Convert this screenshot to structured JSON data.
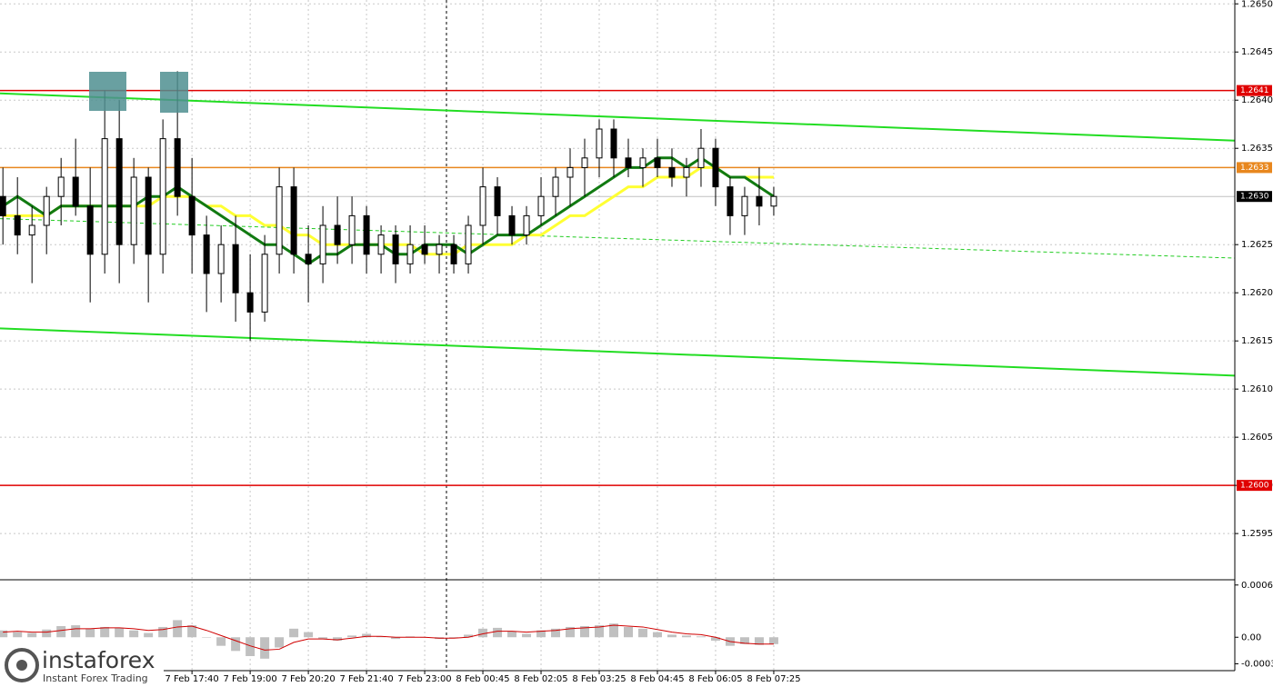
{
  "chart_data": {
    "type": "candlestick",
    "xlim": [
      -0.2,
      84.7
    ],
    "ylim": [
      1.25902,
      1.26504
    ],
    "grid": true,
    "candle_colors": {
      "up": "#ffffff",
      "down": "#000000",
      "edge": "#000000"
    },
    "xticks": [
      {
        "value": 13,
        "label": "7 Feb 17:40"
      },
      {
        "value": 17,
        "label": "7 Feb 19:00"
      },
      {
        "value": 21,
        "label": "7 Feb 20:20"
      },
      {
        "value": 25,
        "label": "7 Feb 21:40"
      },
      {
        "value": 29,
        "label": "7 Feb 23:00"
      },
      {
        "value": 33,
        "label": "8 Feb 00:45"
      },
      {
        "value": 37,
        "label": "8 Feb 02:05"
      },
      {
        "value": 41,
        "label": "8 Feb 03:25"
      },
      {
        "value": 45,
        "label": "8 Feb 04:45"
      },
      {
        "value": 49,
        "label": "8 Feb 06:05"
      },
      {
        "value": 53,
        "label": "8 Feb 07:25"
      }
    ],
    "yticks": [
      {
        "value": 1.265,
        "label": "1.2650"
      },
      {
        "value": 1.2645,
        "label": "1.2645"
      },
      {
        "value": 1.264,
        "label": "1.2640"
      },
      {
        "value": 1.2635,
        "label": "1.2635"
      },
      {
        "value": 1.2625,
        "label": "1.2625"
      },
      {
        "value": 1.262,
        "label": "1.2620"
      },
      {
        "value": 1.2615,
        "label": "1.2615"
      },
      {
        "value": 1.261,
        "label": "1.2610"
      },
      {
        "value": 1.2605,
        "label": "1.2605"
      },
      {
        "value": 1.26,
        "label": "1.2600"
      },
      {
        "value": 1.2595,
        "label": "1.2595"
      }
    ],
    "open": [
      1.263,
      1.2628,
      1.2626,
      1.2627,
      1.263,
      1.2632,
      1.2629,
      1.2624,
      1.2636,
      1.2625,
      1.2632,
      1.2624,
      1.2636,
      1.263,
      1.2626,
      1.2622,
      1.2625,
      1.262,
      1.2618,
      1.2624,
      1.2631,
      1.2624,
      1.2623,
      1.2627,
      1.2625,
      1.2628,
      1.2624,
      1.2626,
      1.2623,
      1.2625,
      1.2624,
      1.2625,
      1.2623,
      1.2627,
      1.2631,
      1.2628,
      1.2626,
      1.2628,
      1.263,
      1.2632,
      1.2633,
      1.2634,
      1.2637,
      1.2634,
      1.2633,
      1.2634,
      1.2633,
      1.2632,
      1.2633,
      1.2635,
      1.2631,
      1.2628,
      1.263,
      1.2629
    ],
    "high": [
      1.2633,
      1.2632,
      1.2629,
      1.2631,
      1.2634,
      1.2636,
      1.2633,
      1.2641,
      1.264,
      1.2634,
      1.2633,
      1.2638,
      1.2643,
      1.2634,
      1.2628,
      1.2627,
      1.2628,
      1.2624,
      1.2626,
      1.2633,
      1.2633,
      1.2627,
      1.2629,
      1.263,
      1.263,
      1.2629,
      1.2627,
      1.2627,
      1.2627,
      1.2627,
      1.2626,
      1.2626,
      1.2628,
      1.2633,
      1.2632,
      1.2629,
      1.2629,
      1.2632,
      1.2633,
      1.2635,
      1.2636,
      1.2638,
      1.2638,
      1.2636,
      1.2635,
      1.2636,
      1.2635,
      1.2634,
      1.2637,
      1.2636,
      1.2632,
      1.2631,
      1.2633,
      1.2631
    ],
    "low": [
      1.2625,
      1.2624,
      1.2621,
      1.2624,
      1.2627,
      1.2628,
      1.2619,
      1.2622,
      1.2621,
      1.2623,
      1.2619,
      1.2622,
      1.2628,
      1.2622,
      1.2618,
      1.2619,
      1.2617,
      1.2615,
      1.2617,
      1.2622,
      1.2622,
      1.2619,
      1.2621,
      1.2623,
      1.2623,
      1.2622,
      1.2622,
      1.2621,
      1.2622,
      1.2623,
      1.2622,
      1.2622,
      1.2622,
      1.2625,
      1.2626,
      1.2625,
      1.2625,
      1.2627,
      1.2628,
      1.2629,
      1.263,
      1.2632,
      1.2632,
      1.2632,
      1.2631,
      1.2632,
      1.2631,
      1.263,
      1.2631,
      1.2629,
      1.2626,
      1.2626,
      1.2627,
      1.2628
    ],
    "close": [
      1.2628,
      1.2626,
      1.2627,
      1.263,
      1.2632,
      1.2629,
      1.2624,
      1.2636,
      1.2625,
      1.2632,
      1.2624,
      1.2636,
      1.263,
      1.2626,
      1.2622,
      1.2625,
      1.262,
      1.2618,
      1.2624,
      1.2631,
      1.2624,
      1.2623,
      1.2627,
      1.2625,
      1.2628,
      1.2624,
      1.2626,
      1.2623,
      1.2625,
      1.2624,
      1.2625,
      1.2623,
      1.2627,
      1.2631,
      1.2628,
      1.2626,
      1.2628,
      1.263,
      1.2632,
      1.2633,
      1.2634,
      1.2637,
      1.2634,
      1.2633,
      1.2634,
      1.2633,
      1.2632,
      1.2633,
      1.2635,
      1.2631,
      1.2628,
      1.263,
      1.2629,
      1.263
    ],
    "lines": [
      {
        "color": "#ffff33",
        "values": [
          1.2628,
          1.2628,
          1.2628,
          1.2628,
          1.2629,
          1.2629,
          1.2629,
          1.2629,
          1.2629,
          1.2629,
          1.2629,
          1.263,
          1.263,
          1.263,
          1.2629,
          1.2629,
          1.2628,
          1.2628,
          1.2627,
          1.2627,
          1.2626,
          1.2626,
          1.2625,
          1.2625,
          1.2625,
          1.2625,
          1.2625,
          1.2625,
          1.2625,
          1.2624,
          1.2624,
          1.2624,
          1.2625,
          1.2625,
          1.2625,
          1.2625,
          1.2626,
          1.2626,
          1.2627,
          1.2628,
          1.2628,
          1.2629,
          1.263,
          1.2631,
          1.2631,
          1.2632,
          1.2632,
          1.2632,
          1.2633,
          1.2633,
          1.2632,
          1.2632,
          1.2632,
          1.2632
        ]
      },
      {
        "color": "#117a11",
        "values": [
          1.2629,
          1.263,
          1.2629,
          1.2628,
          1.2629,
          1.2629,
          1.2629,
          1.2629,
          1.2629,
          1.2629,
          1.263,
          1.263,
          1.2631,
          1.263,
          1.2629,
          1.2628,
          1.2627,
          1.2626,
          1.2625,
          1.2625,
          1.2624,
          1.2623,
          1.2624,
          1.2624,
          1.2625,
          1.2625,
          1.2625,
          1.2624,
          1.2624,
          1.2625,
          1.2625,
          1.2625,
          1.2624,
          1.2625,
          1.2626,
          1.2626,
          1.2626,
          1.2627,
          1.2628,
          1.2629,
          1.263,
          1.2631,
          1.2632,
          1.2633,
          1.2633,
          1.2634,
          1.2634,
          1.2633,
          1.2634,
          1.2633,
          1.2632,
          1.2632,
          1.2631,
          1.263
        ]
      }
    ],
    "trendlines": [
      {
        "color": "#22dd22",
        "style": "solid",
        "y": [
          1.26407,
          1.26358
        ]
      },
      {
        "color": "#22dd22",
        "style": "solid",
        "y": [
          1.26163,
          1.26114
        ]
      },
      {
        "color": "#22cc22",
        "style": "dashed",
        "y": [
          1.26277,
          1.26236
        ]
      }
    ],
    "levels": [
      {
        "value": 1.2641,
        "label": "1.2641",
        "color": "#e00000"
      },
      {
        "value": 1.2633,
        "label": "1.2633",
        "color": "#e8871e"
      },
      {
        "value": 1.263,
        "label": "1.2630",
        "color": "#000000"
      },
      {
        "value": 1.26,
        "label": "1.2600",
        "color": "#e00000"
      }
    ],
    "indicator": {
      "ylim": [
        -0.00039,
        0.00065
      ],
      "yticks": [
        0.00061,
        {
          "value": 0,
          "label": "0.00"
        },
        -0.00031
      ],
      "histogram_color": "#c0c0c0",
      "signal_color": "#d00000",
      "histogram": [
        8e-05,
        6e-05,
        5e-05,
        9e-05,
        0.00013,
        0.00014,
        0.0001,
        0.00012,
        0.00011,
        8e-05,
        5e-05,
        0.00012,
        0.0002,
        0.00014,
        0.0,
        -0.0001,
        -0.00016,
        -0.00022,
        -0.00025,
        -0.00012,
        0.0001,
        6e-05,
        -2e-05,
        -4e-05,
        2e-05,
        4e-05,
        1e-05,
        -2e-05,
        1e-05,
        0.0,
        -2e-05,
        -1e-05,
        3e-05,
        0.0001,
        0.00011,
        7e-05,
        4e-05,
        8e-05,
        0.0001,
        0.00012,
        0.00013,
        0.00014,
        0.00016,
        0.00012,
        0.0001,
        6e-05,
        3e-05,
        2e-05,
        1e-05,
        -4e-05,
        -0.0001,
        -8e-05,
        -9e-05,
        -8e-05
      ],
      "signal": [
        6e-05,
        7e-05,
        6e-05,
        6e-05,
        8e-05,
        0.0001,
        0.0001,
        0.00011,
        0.00011,
        0.0001,
        8e-05,
        9e-05,
        0.00012,
        0.00013,
        8e-05,
        2e-05,
        -4e-05,
        -0.0001,
        -0.00015,
        -0.00014,
        -6e-05,
        -2e-05,
        -2e-05,
        -3e-05,
        -1e-05,
        1e-05,
        1e-05,
        0.0,
        0.0,
        0.0,
        -1e-05,
        -1e-05,
        0.0,
        4e-05,
        7e-05,
        7e-05,
        6e-05,
        7e-05,
        8e-05,
        0.0001,
        0.00011,
        0.00012,
        0.00014,
        0.00013,
        0.00012,
        9e-05,
        6e-05,
        4e-05,
        3e-05,
        0.0,
        -5e-05,
        -7e-05,
        -8e-05,
        -8e-05
      ]
    }
  },
  "logo": {
    "name": "instaforex",
    "tagline": "Instant Forex Trading"
  }
}
